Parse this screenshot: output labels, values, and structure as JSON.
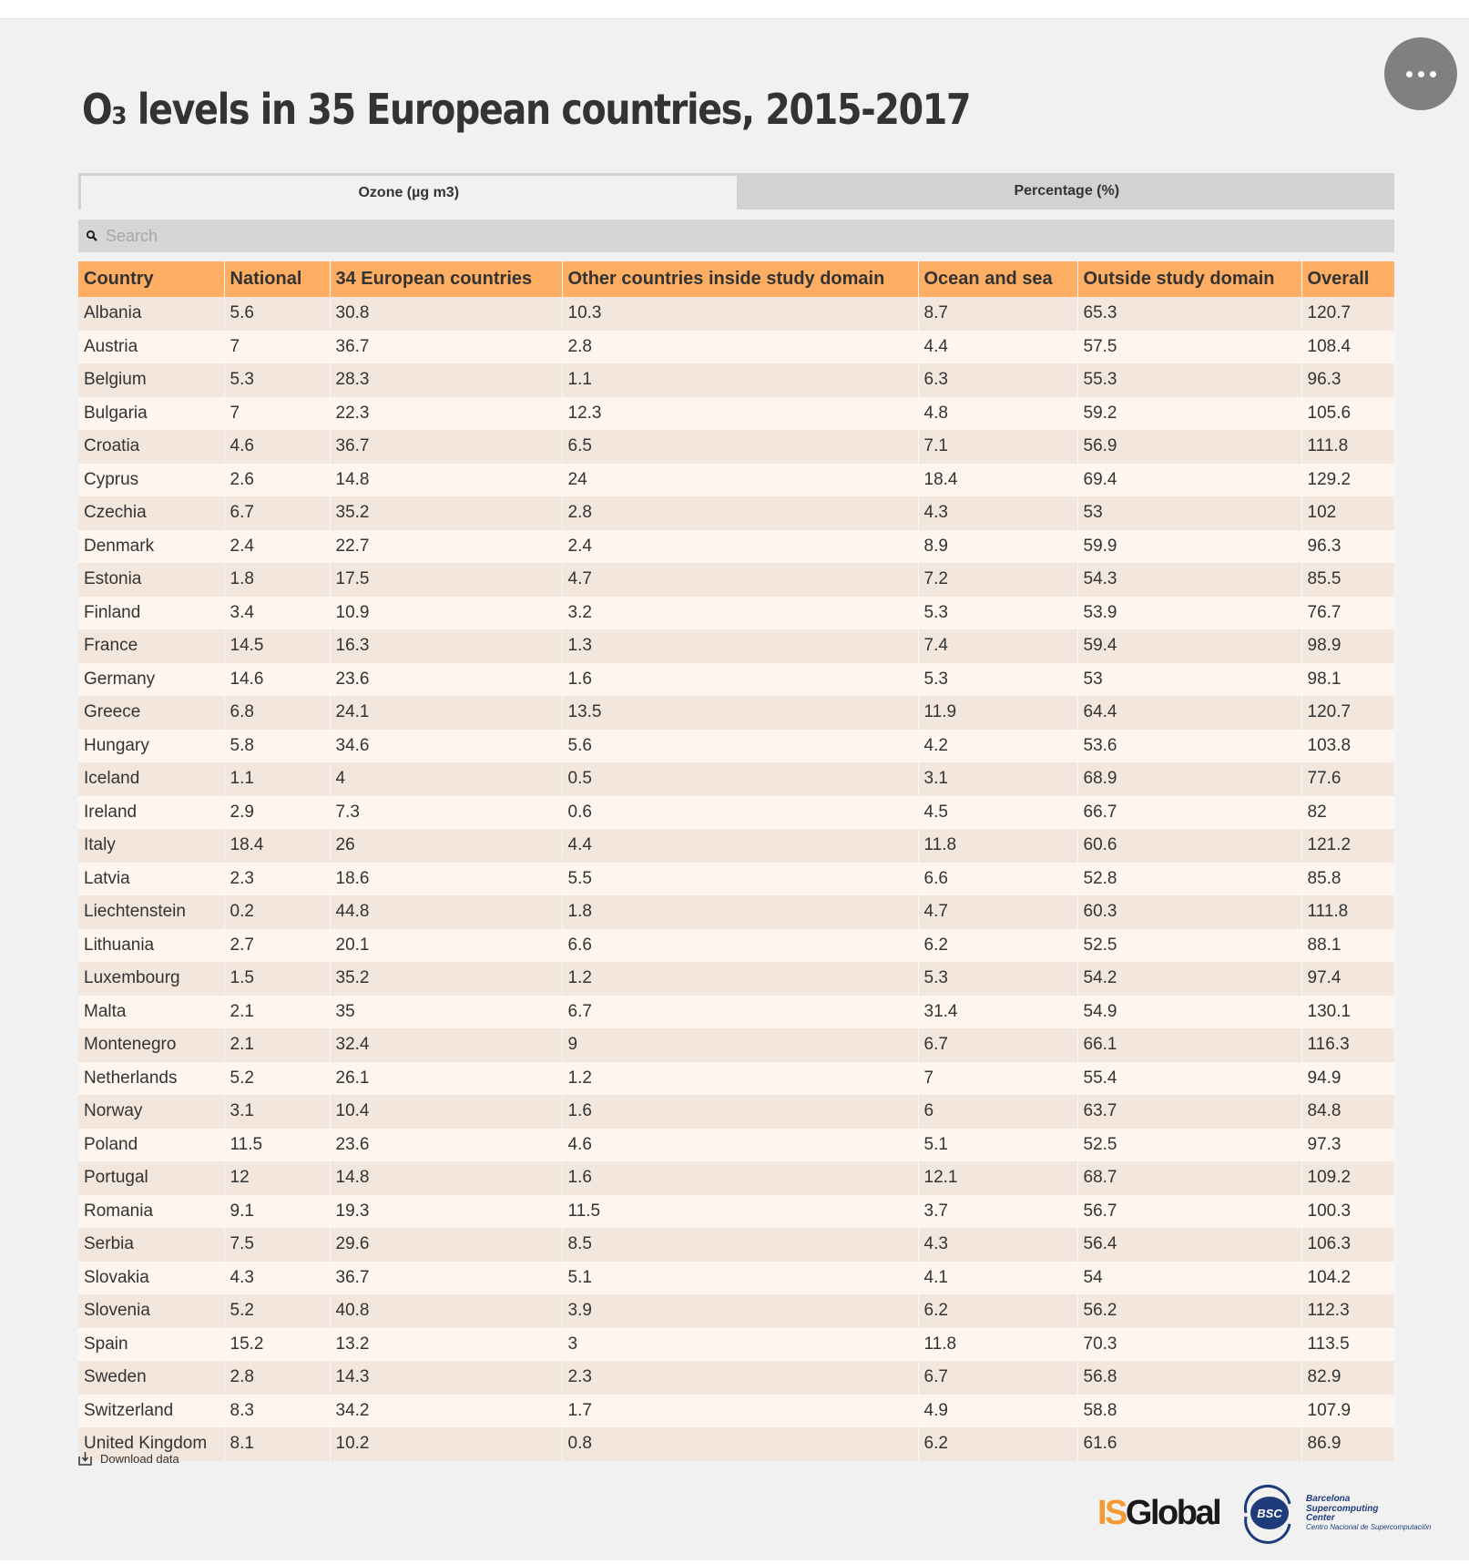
{
  "title": "O₃ levels in 35 European countries, 2015-2017",
  "tabs": [
    {
      "label": "Ozone (µg m3)",
      "active": true
    },
    {
      "label": "Percentage (%)",
      "active": false
    }
  ],
  "search": {
    "placeholder": "Search",
    "value": ""
  },
  "table": {
    "columns": [
      "Country",
      "National",
      "34 European countries",
      "Other countries inside study domain",
      "Ocean and sea",
      "Outside study domain",
      "Overall"
    ],
    "rows": [
      [
        "Albania",
        "5.6",
        "30.8",
        "10.3",
        "8.7",
        "65.3",
        "120.7"
      ],
      [
        "Austria",
        "7",
        "36.7",
        "2.8",
        "4.4",
        "57.5",
        "108.4"
      ],
      [
        "Belgium",
        "5.3",
        "28.3",
        "1.1",
        "6.3",
        "55.3",
        "96.3"
      ],
      [
        "Bulgaria",
        "7",
        "22.3",
        "12.3",
        "4.8",
        "59.2",
        "105.6"
      ],
      [
        "Croatia",
        "4.6",
        "36.7",
        "6.5",
        "7.1",
        "56.9",
        "111.8"
      ],
      [
        "Cyprus",
        "2.6",
        "14.8",
        "24",
        "18.4",
        "69.4",
        "129.2"
      ],
      [
        "Czechia",
        "6.7",
        "35.2",
        "2.8",
        "4.3",
        "53",
        "102"
      ],
      [
        "Denmark",
        "2.4",
        "22.7",
        "2.4",
        "8.9",
        "59.9",
        "96.3"
      ],
      [
        "Estonia",
        "1.8",
        "17.5",
        "4.7",
        "7.2",
        "54.3",
        "85.5"
      ],
      [
        "Finland",
        "3.4",
        "10.9",
        "3.2",
        "5.3",
        "53.9",
        "76.7"
      ],
      [
        "France",
        "14.5",
        "16.3",
        "1.3",
        "7.4",
        "59.4",
        "98.9"
      ],
      [
        "Germany",
        "14.6",
        "23.6",
        "1.6",
        "5.3",
        "53",
        "98.1"
      ],
      [
        "Greece",
        "6.8",
        "24.1",
        "13.5",
        "11.9",
        "64.4",
        "120.7"
      ],
      [
        "Hungary",
        "5.8",
        "34.6",
        "5.6",
        "4.2",
        "53.6",
        "103.8"
      ],
      [
        "Iceland",
        "1.1",
        "4",
        "0.5",
        "3.1",
        "68.9",
        "77.6"
      ],
      [
        "Ireland",
        "2.9",
        "7.3",
        "0.6",
        "4.5",
        "66.7",
        "82"
      ],
      [
        "Italy",
        "18.4",
        "26",
        "4.4",
        "11.8",
        "60.6",
        "121.2"
      ],
      [
        "Latvia",
        "2.3",
        "18.6",
        "5.5",
        "6.6",
        "52.8",
        "85.8"
      ],
      [
        "Liechtenstein",
        "0.2",
        "44.8",
        "1.8",
        "4.7",
        "60.3",
        "111.8"
      ],
      [
        "Lithuania",
        "2.7",
        "20.1",
        "6.6",
        "6.2",
        "52.5",
        "88.1"
      ],
      [
        "Luxembourg",
        "1.5",
        "35.2",
        "1.2",
        "5.3",
        "54.2",
        "97.4"
      ],
      [
        "Malta",
        "2.1",
        "35",
        "6.7",
        "31.4",
        "54.9",
        "130.1"
      ],
      [
        "Montenegro",
        "2.1",
        "32.4",
        "9",
        "6.7",
        "66.1",
        "116.3"
      ],
      [
        "Netherlands",
        "5.2",
        "26.1",
        "1.2",
        "7",
        "55.4",
        "94.9"
      ],
      [
        "Norway",
        "3.1",
        "10.4",
        "1.6",
        "6",
        "63.7",
        "84.8"
      ],
      [
        "Poland",
        "11.5",
        "23.6",
        "4.6",
        "5.1",
        "52.5",
        "97.3"
      ],
      [
        "Portugal",
        "12",
        "14.8",
        "1.6",
        "12.1",
        "68.7",
        "109.2"
      ],
      [
        "Romania",
        "9.1",
        "19.3",
        "11.5",
        "3.7",
        "56.7",
        "100.3"
      ],
      [
        "Serbia",
        "7.5",
        "29.6",
        "8.5",
        "4.3",
        "56.4",
        "106.3"
      ],
      [
        "Slovakia",
        "4.3",
        "36.7",
        "5.1",
        "4.1",
        "54",
        "104.2"
      ],
      [
        "Slovenia",
        "5.2",
        "40.8",
        "3.9",
        "6.2",
        "56.2",
        "112.3"
      ],
      [
        "Spain",
        "15.2",
        "13.2",
        "3",
        "11.8",
        "70.3",
        "113.5"
      ],
      [
        "Sweden",
        "2.8",
        "14.3",
        "2.3",
        "6.7",
        "56.8",
        "82.9"
      ],
      [
        "Switzerland",
        "8.3",
        "34.2",
        "1.7",
        "4.9",
        "58.8",
        "107.9"
      ],
      [
        "United Kingdom",
        "8.1",
        "10.2",
        "0.8",
        "6.2",
        "61.6",
        "86.9"
      ]
    ]
  },
  "download_label": "Download data",
  "logos": {
    "isglobal_is": "IS",
    "isglobal_global": "Global",
    "bsc_mark": "BSC",
    "bsc_lines": [
      "Barcelona",
      "Supercomputing",
      "Center"
    ],
    "bsc_subtitle": "Centro Nacional de Supercomputación"
  },
  "colors": {
    "header": "#fdae62",
    "row_odd": "#f3e6dd",
    "row_even": "#fef6ee",
    "accent_orange": "#f39a33",
    "bsc_blue": "#1f3c7a"
  }
}
